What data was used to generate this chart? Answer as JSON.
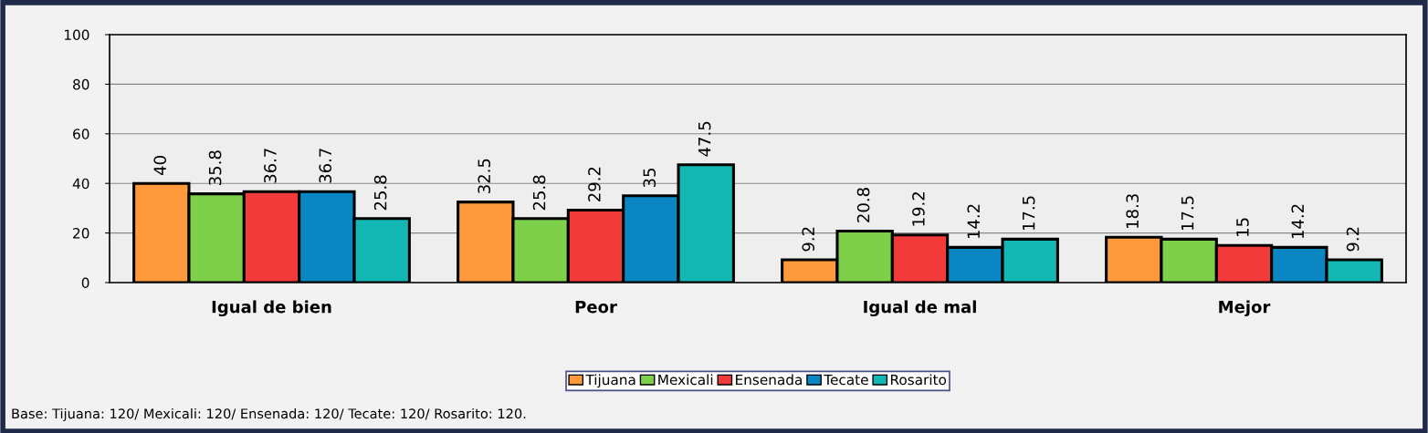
{
  "chart_data": {
    "type": "bar",
    "categories": [
      "Igual de bien",
      "Peor",
      "Igual de mal",
      "Mejor"
    ],
    "series": [
      {
        "name": "Tijuana",
        "color": "#ff9a3c",
        "values": [
          40,
          32.5,
          9.2,
          18.3
        ]
      },
      {
        "name": "Mexicali",
        "color": "#7ed04a",
        "values": [
          35.8,
          25.8,
          20.8,
          17.5
        ]
      },
      {
        "name": "Ensenada",
        "color": "#f23a3a",
        "values": [
          36.7,
          29.2,
          19.2,
          15
        ]
      },
      {
        "name": "Tecate",
        "color": "#0a86c2",
        "values": [
          36.7,
          35,
          14.2,
          14.2
        ]
      },
      {
        "name": "Rosarito",
        "color": "#13b8b4",
        "values": [
          25.8,
          47.5,
          17.5,
          9.2
        ]
      }
    ],
    "ylim": [
      0,
      100
    ],
    "yticks": [
      0,
      20,
      40,
      60,
      80,
      100
    ],
    "grid": "y",
    "legend": "bottom",
    "data_labels": true,
    "annotations": [
      "Base: Tijuana: 120/ Mexicali: 120/ Ensenada: 120/ Tecate: 120/ Rosarito: 120."
    ]
  }
}
